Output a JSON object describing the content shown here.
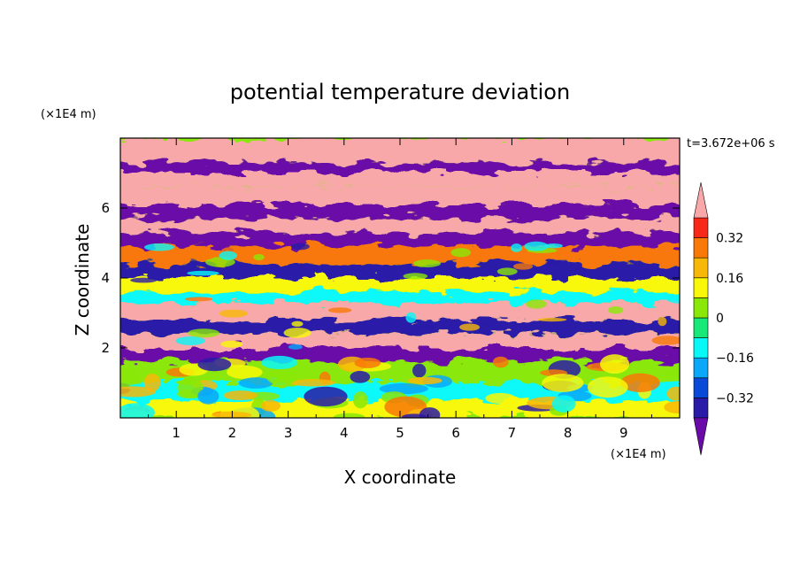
{
  "chart_data": {
    "type": "heatmap",
    "title": "potential temperature deviation",
    "xlabel": "X coordinate",
    "ylabel": "Z coordinate",
    "x_unit": "(×1E4 m)",
    "y_unit": "(×1E4 m)",
    "time_label": "t=3.672e+06 s",
    "xlim": [
      0,
      10
    ],
    "ylim": [
      0,
      8
    ],
    "x_ticks": [
      1,
      2,
      3,
      4,
      5,
      6,
      7,
      8,
      9
    ],
    "y_ticks": [
      2,
      4,
      6
    ],
    "colorbar": {
      "levels": [
        -0.4,
        -0.32,
        -0.24,
        -0.16,
        -0.08,
        0,
        0.08,
        0.16,
        0.24,
        0.32,
        0.4
      ],
      "tick_labels": [
        "0.32",
        "0.16",
        "0",
        "−0.16",
        "−0.32"
      ],
      "tick_values": [
        0.32,
        0.16,
        0,
        -0.16,
        -0.32
      ],
      "colors": [
        "#6a0aa8",
        "#2a1aa8",
        "#0a4ad8",
        "#0aa8f8",
        "#08f8f8",
        "#18e878",
        "#8ae808",
        "#f8f808",
        "#f8b808",
        "#f87808",
        "#f82818",
        "#f8a8a8"
      ]
    },
    "bands": [
      {
        "z": [
          7.3,
          8.0
        ],
        "value": 0.5
      },
      {
        "z": [
          7.0,
          7.3
        ],
        "value": -0.5
      },
      {
        "z": [
          6.6,
          7.0
        ],
        "value": 0.5
      },
      {
        "z": [
          6.1,
          6.6
        ],
        "value": 0.5
      },
      {
        "z": [
          5.7,
          6.1
        ],
        "value": -0.5
      },
      {
        "z": [
          5.3,
          5.7
        ],
        "value": 0.5
      },
      {
        "z": [
          4.9,
          5.3
        ],
        "value": -0.5
      },
      {
        "z": [
          4.4,
          4.9
        ],
        "value": 0.24
      },
      {
        "z": [
          4.0,
          4.4
        ],
        "value": -0.4
      },
      {
        "z": [
          3.6,
          4.0
        ],
        "value": 0.08
      },
      {
        "z": [
          3.3,
          3.6
        ],
        "value": -0.1
      },
      {
        "z": [
          2.8,
          3.3
        ],
        "value": 0.5
      },
      {
        "z": [
          2.4,
          2.8
        ],
        "value": -0.4
      },
      {
        "z": [
          2.0,
          2.4
        ],
        "value": 0.5
      },
      {
        "z": [
          1.6,
          2.0
        ],
        "value": -0.5
      },
      {
        "z": [
          1.0,
          1.6
        ],
        "value": 0.05
      },
      {
        "z": [
          0.5,
          1.0
        ],
        "value": -0.1
      },
      {
        "z": [
          0.0,
          0.5
        ],
        "value": 0.1
      }
    ]
  }
}
